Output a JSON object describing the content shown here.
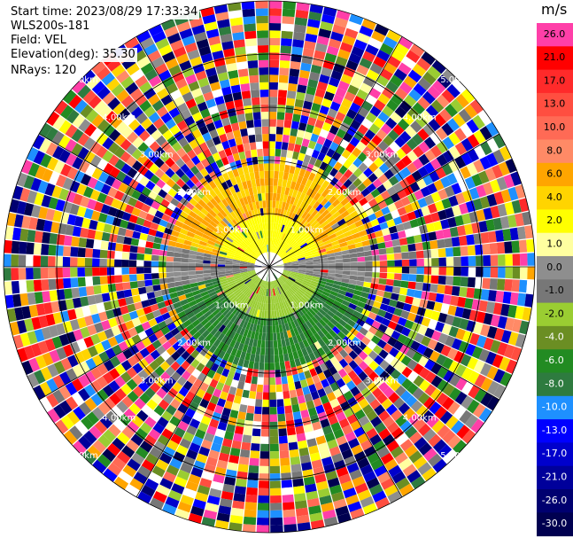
{
  "header": {
    "start_time": "Start time: 2023/08/29 17:33:34",
    "instrument": "WLS200s-181",
    "field": "Field: VEL",
    "elevation": "Elevation(deg): 35.30",
    "nrays": "NRays: 120"
  },
  "colorbar": {
    "unit": "m/s",
    "ticks": [
      "26.0",
      "21.0",
      "17.0",
      "13.0",
      "10.0",
      "8.0",
      "6.0",
      "4.0",
      "2.0",
      "1.0",
      "0.0",
      "-1.0",
      "-2.0",
      "-4.0",
      "-6.0",
      "-8.0",
      "-10.0",
      "-13.0",
      "-17.0",
      "-21.0",
      "-26.0",
      "-30.0"
    ],
    "colors": [
      "#ff3fa8",
      "#ff0000",
      "#ff2a2a",
      "#ff4e40",
      "#ff6a55",
      "#ff8a66",
      "#ffa500",
      "#ffd400",
      "#ffff00",
      "#ffffa0",
      "#8e8e8e",
      "#777777",
      "#9acd32",
      "#6b8e23",
      "#228b22",
      "#2e7b3f",
      "#1e90ff",
      "#0000ff",
      "#0000cc",
      "#00009b",
      "#000070",
      "#000050"
    ]
  },
  "chart_data": {
    "type": "heatmap",
    "projection": "polar PPI",
    "field": "VEL",
    "nrays": 120,
    "range_ring_labels": [
      "1.00km",
      "2.00km",
      "3.00km",
      "4.00km",
      "5.00km"
    ],
    "color_levels": [
      26.0,
      21.0,
      17.0,
      13.0,
      10.0,
      8.0,
      6.0,
      4.0,
      2.0,
      1.0,
      0.0,
      -1.0,
      -2.0,
      -4.0,
      -6.0,
      -8.0,
      -10.0,
      -13.0,
      -17.0,
      -21.0,
      -26.0,
      -30.0
    ],
    "near_range_pattern": "positive velocities (yellow/orange) to the north, near-zero (gray) east-west band, negative velocities (green) to the south; far range gates noisy"
  }
}
